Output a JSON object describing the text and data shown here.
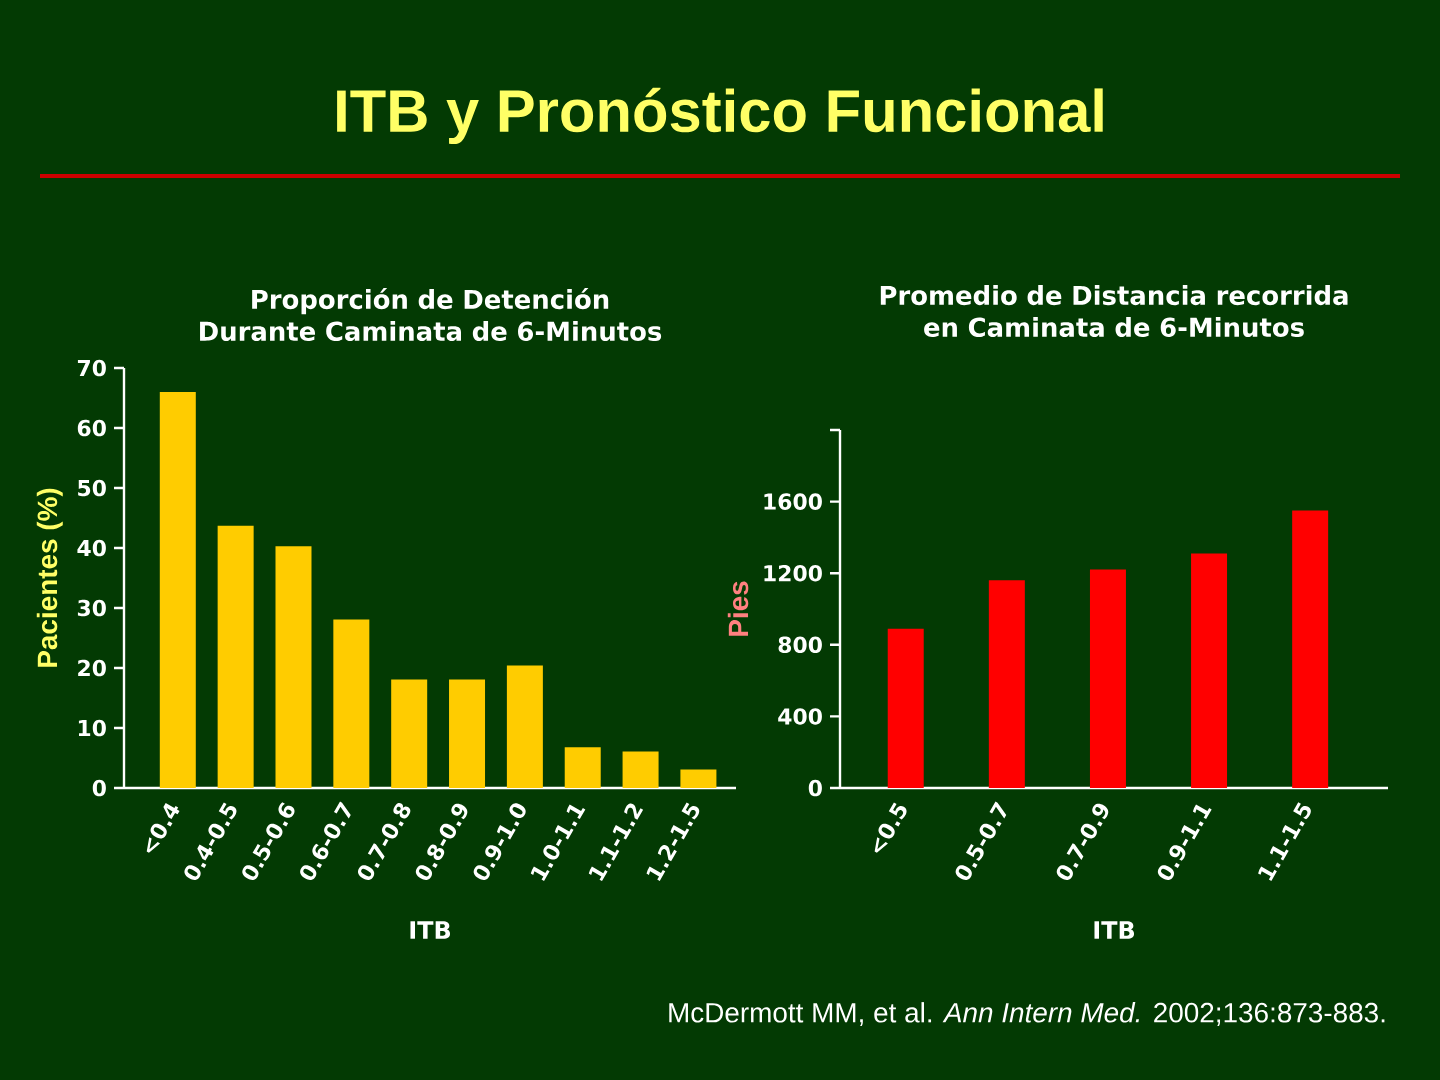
{
  "chart_data": [
    {
      "type": "other",
      "title": "ITB y Pronóstico Funcional"
    },
    {
      "type": "bar",
      "title": "Proporción de Detención Durante Caminata de 6-Minutos",
      "xlabel": "ITB",
      "ylabel": "Pacientes (%)",
      "categories": [
        "<0.4",
        "0.4-0.5",
        "0.5-0.6",
        "0.6-0.7",
        "0.7-0.8",
        "0.8-0.9",
        "0.9-1.0",
        "1.0-1.1",
        "1.1-1.2",
        "1.2-1.5"
      ],
      "values": [
        66,
        43.7,
        40.3,
        28.1,
        18.1,
        18.1,
        20.4,
        6.8,
        6.1,
        3.1
      ],
      "color": "#ffcc00",
      "ylim": [
        0,
        70
      ],
      "yticks": [
        0,
        10,
        20,
        30,
        40,
        50,
        60,
        70
      ]
    },
    {
      "type": "bar",
      "title": "Promedio de Distancia recorrida en Caminata de 6-Minutos",
      "xlabel": "ITB",
      "ylabel": "Pies",
      "categories": [
        "<0.5",
        "0.5-0.7",
        "0.7-0.9",
        "0.9-1.1",
        "1.1-1.5"
      ],
      "values": [
        890,
        1160,
        1220,
        1310,
        1550
      ],
      "color": "#ff0000",
      "ylim": [
        0,
        2000
      ],
      "yticks": [
        0,
        400,
        800,
        1200,
        1600,
        {
          "value": 2000,
          "label": null
        }
      ],
      "annotations": [
        "McDermott MM, et al. *Ann Intern Med.* 2002;136:873-883."
      ]
    }
  ]
}
